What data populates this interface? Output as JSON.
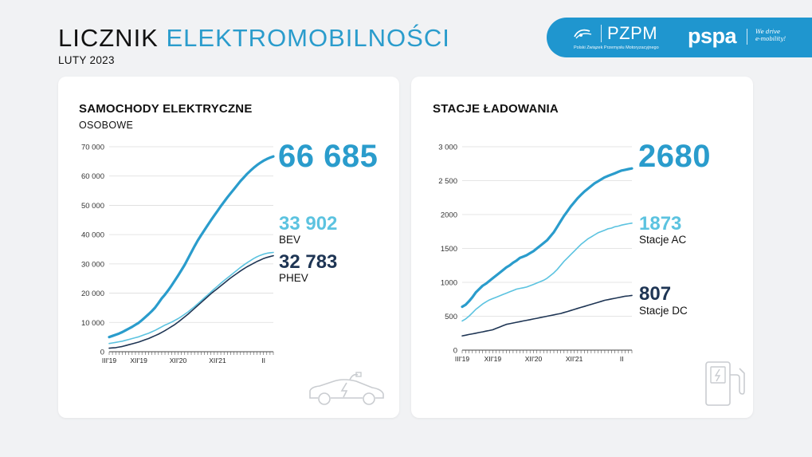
{
  "header": {
    "title_part1": "LICZNIK ",
    "title_part2": "ELEKTROMOBILNOŚCI",
    "subtitle": "LUTY 2023"
  },
  "logos": {
    "pzpm_name": "PZPM",
    "pzpm_full": "Polski Związek Przemysłu Motoryzacyjnego",
    "pspa_name": "pspa",
    "pspa_tagline_1": "We drive",
    "pspa_tagline_2": "e-mobility!"
  },
  "cards": {
    "cars": {
      "title": "SAMOCHODY ELEKTRYCZNE",
      "subtitle": "OSOBOWE",
      "total": "66 685",
      "series1_value": "33 902",
      "series1_label": "BEV",
      "series2_value": "32 783",
      "series2_label": "PHEV",
      "icon": "electric-car-icon"
    },
    "stations": {
      "title": "STACJE ŁADOWANIA",
      "total": "2680",
      "series1_value": "1873",
      "series1_label": "Stacje AC",
      "series2_value": "807",
      "series2_label": "Stacje DC",
      "icon": "charging-station-icon"
    }
  },
  "colors": {
    "accent": "#2a9ccc",
    "light_series": "#5cc3e0",
    "dark_series": "#1e3554",
    "logo_bar": "#1f96cf"
  },
  "chart_data": [
    {
      "type": "line",
      "title": "SAMOCHODY ELEKTRYCZNE",
      "ylim": [
        0,
        70000
      ],
      "y_ticks": [
        "0",
        "10 000",
        "20 000",
        "30 000",
        "40 000",
        "50 000",
        "60 000",
        "70 000"
      ],
      "x_ticks": [
        "III'19",
        "XII'19",
        "XII'20",
        "XII'21",
        "II"
      ],
      "x_tick_positions": [
        0,
        9,
        21,
        33,
        47
      ],
      "grid": true,
      "series": [
        {
          "name": "",
          "values": [
            5000,
            5400,
            5800,
            6200,
            6700,
            7300,
            7900,
            8500,
            9200,
            9900,
            10800,
            11800,
            12800,
            13900,
            15100,
            16600,
            18200,
            19500,
            21000,
            22600,
            24300,
            26000,
            27800,
            29700,
            31800,
            33900,
            36000,
            38000,
            39800,
            41500,
            43200,
            44900,
            46500,
            48100,
            49700,
            51200,
            52700,
            54100,
            55500,
            56900,
            58300,
            59500,
            60700,
            61800,
            62800,
            63700,
            64500,
            65200,
            65800,
            66300,
            66685
          ]
        },
        {
          "name": "BEV",
          "values": [
            2800,
            3000,
            3200,
            3400,
            3600,
            3900,
            4200,
            4500,
            4800,
            5100,
            5500,
            5900,
            6300,
            6800,
            7300,
            7900,
            8500,
            9100,
            9600,
            10100,
            10700,
            11300,
            12000,
            12800,
            13600,
            14500,
            15400,
            16400,
            17400,
            18400,
            19400,
            20400,
            21400,
            22400,
            23400,
            24300,
            25200,
            26100,
            27000,
            27900,
            28800,
            29600,
            30400,
            31100,
            31800,
            32400,
            32900,
            33300,
            33600,
            33800,
            33902
          ]
        },
        {
          "name": "PHEV",
          "values": [
            1200,
            1300,
            1400,
            1600,
            1800,
            2100,
            2400,
            2700,
            3000,
            3300,
            3700,
            4100,
            4500,
            5000,
            5500,
            6000,
            6600,
            7200,
            7900,
            8600,
            9300,
            10100,
            11000,
            11900,
            12800,
            13800,
            14800,
            15800,
            16800,
            17800,
            18800,
            19800,
            20700,
            21600,
            22500,
            23400,
            24300,
            25200,
            26000,
            26800,
            27600,
            28300,
            29000,
            29600,
            30200,
            30800,
            31300,
            31800,
            32200,
            32500,
            32783
          ]
        }
      ]
    },
    {
      "type": "line",
      "title": "STACJE ŁADOWANIA",
      "ylim": [
        0,
        3000
      ],
      "y_ticks": [
        "0",
        "500",
        "1000",
        "1500",
        "2000",
        "2 500",
        "3 000"
      ],
      "x_ticks": [
        "III'19",
        "XII'19",
        "XII'20",
        "XII'21",
        "II"
      ],
      "x_tick_positions": [
        0,
        9,
        21,
        33,
        47
      ],
      "grid": true,
      "series": [
        {
          "name": "",
          "values": [
            640,
            670,
            720,
            780,
            850,
            900,
            950,
            980,
            1020,
            1060,
            1100,
            1140,
            1180,
            1220,
            1250,
            1290,
            1320,
            1360,
            1380,
            1400,
            1430,
            1460,
            1500,
            1540,
            1580,
            1620,
            1680,
            1740,
            1820,
            1900,
            1980,
            2050,
            2120,
            2180,
            2240,
            2290,
            2340,
            2380,
            2420,
            2460,
            2490,
            2520,
            2550,
            2570,
            2590,
            2610,
            2630,
            2650,
            2660,
            2670,
            2680
          ]
        },
        {
          "name": "Stacje AC",
          "values": [
            430,
            460,
            500,
            550,
            600,
            640,
            680,
            710,
            740,
            760,
            780,
            800,
            820,
            840,
            860,
            880,
            900,
            910,
            920,
            930,
            950,
            970,
            990,
            1010,
            1030,
            1060,
            1100,
            1140,
            1190,
            1250,
            1310,
            1360,
            1410,
            1460,
            1510,
            1560,
            1600,
            1640,
            1670,
            1700,
            1730,
            1750,
            1770,
            1790,
            1800,
            1820,
            1830,
            1845,
            1855,
            1865,
            1873
          ]
        },
        {
          "name": "Stacje DC",
          "values": [
            210,
            220,
            230,
            240,
            250,
            260,
            270,
            280,
            290,
            300,
            320,
            340,
            360,
            380,
            390,
            400,
            410,
            420,
            430,
            440,
            450,
            460,
            470,
            480,
            490,
            500,
            510,
            520,
            530,
            540,
            555,
            570,
            585,
            600,
            615,
            630,
            645,
            660,
            675,
            690,
            705,
            720,
            735,
            745,
            755,
            765,
            775,
            785,
            795,
            800,
            807
          ]
        }
      ]
    }
  ]
}
